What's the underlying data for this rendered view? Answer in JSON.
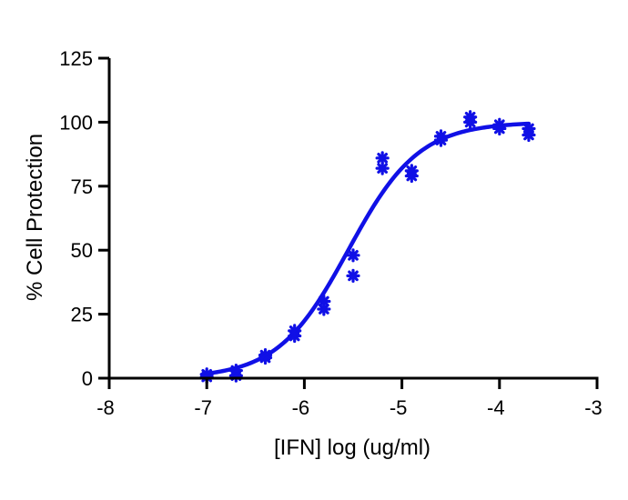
{
  "chart_data": {
    "type": "scatter",
    "title": "",
    "xlabel": "[IFN] log (ug/ml)",
    "ylabel": "% Cell Protection",
    "xlim": [
      -8,
      -3
    ],
    "ylim": [
      0,
      125
    ],
    "x_ticks": [
      "-8",
      "-7",
      "-6",
      "-5",
      "-4",
      "-3"
    ],
    "y_ticks": [
      "0",
      "25",
      "50",
      "75",
      "100",
      "125"
    ],
    "grid": false,
    "legend": "none",
    "colors": {
      "series": "#1010e6",
      "axis": "#000000"
    },
    "series": [
      {
        "kind": "points",
        "marker": "asterisk",
        "points": [
          {
            "x": -7.0,
            "y": 0.5
          },
          {
            "x": -7.0,
            "y": 1.5
          },
          {
            "x": -6.7,
            "y": 1.0
          },
          {
            "x": -6.7,
            "y": 3.0
          },
          {
            "x": -6.4,
            "y": 8.0
          },
          {
            "x": -6.4,
            "y": 9.0
          },
          {
            "x": -6.1,
            "y": 16.5
          },
          {
            "x": -6.1,
            "y": 18.5
          },
          {
            "x": -5.8,
            "y": 27.0
          },
          {
            "x": -5.8,
            "y": 30.0
          },
          {
            "x": -5.5,
            "y": 40.0
          },
          {
            "x": -5.5,
            "y": 48.0
          },
          {
            "x": -5.2,
            "y": 82.0
          },
          {
            "x": -5.2,
            "y": 86.0
          },
          {
            "x": -4.9,
            "y": 79.0
          },
          {
            "x": -4.9,
            "y": 81.0
          },
          {
            "x": -4.6,
            "y": 93.0
          },
          {
            "x": -4.6,
            "y": 94.5
          },
          {
            "x": -4.3,
            "y": 100.0
          },
          {
            "x": -4.3,
            "y": 102.0
          },
          {
            "x": -4.0,
            "y": 97.5
          },
          {
            "x": -4.0,
            "y": 99.0
          },
          {
            "x": -3.7,
            "y": 95.0
          },
          {
            "x": -3.7,
            "y": 97.5
          }
        ]
      },
      {
        "kind": "fit",
        "x_range": [
          -7.0,
          -3.7
        ],
        "bottom": 0,
        "top": 100,
        "log_ec50": -5.55,
        "hill_slope": 1.2
      }
    ]
  }
}
